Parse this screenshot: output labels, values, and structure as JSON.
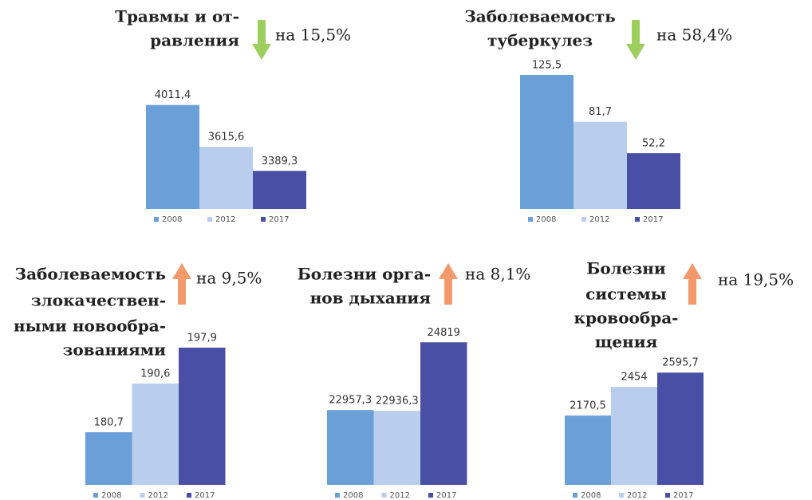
{
  "chart_data": [
    {
      "type": "bar",
      "title_lines": [
        "Травмы и от-",
        "равления"
      ],
      "annotation": "на 15,5%",
      "direction": "down",
      "arrow_color": "#9dce5e",
      "categories": [
        "2008",
        "2012",
        "2017"
      ],
      "values": [
        4011.4,
        3615.6,
        3389.3
      ],
      "value_labels": [
        "4011,4",
        "3615,6",
        "3389,3"
      ],
      "colors": [
        "#6a9fd8",
        "#b9cdec",
        "#4a4fa6"
      ],
      "ylim": [
        3030,
        4250
      ]
    },
    {
      "type": "bar",
      "title_lines": [
        "Заболеваемость",
        "туберкулез"
      ],
      "annotation": "на 58,4%",
      "direction": "down",
      "arrow_color": "#9dce5e",
      "categories": [
        "2008",
        "2012",
        "2017"
      ],
      "values": [
        125.5,
        81.7,
        52.2
      ],
      "value_labels": [
        "125,5",
        "81,7",
        "52,2"
      ],
      "colors": [
        "#6a9fd8",
        "#b9cdec",
        "#4a4fa6"
      ],
      "ylim": [
        0,
        130
      ]
    },
    {
      "type": "bar",
      "title_lines": [
        "Заболеваемость",
        "злокачествен-",
        "ными новообра-",
        "зованиями"
      ],
      "annotation": "на 9,5%",
      "direction": "up",
      "arrow_color": "#f29a6c",
      "categories": [
        "2008",
        "2012",
        "2017"
      ],
      "values": [
        180.7,
        190.6,
        197.9
      ],
      "value_labels": [
        "180,7",
        "190,6",
        "197,9"
      ],
      "colors": [
        "#6a9fd8",
        "#b9cdec",
        "#4a4fa6"
      ],
      "ylim": [
        170,
        200
      ]
    },
    {
      "type": "bar",
      "title_lines": [
        "Болезни орга-",
        "нов дыхания"
      ],
      "annotation": "на 8,1%",
      "direction": "up",
      "arrow_color": "#f29a6c",
      "categories": [
        "2008",
        "2012",
        "2017"
      ],
      "values": [
        22957.3,
        22936.3,
        24819
      ],
      "value_labels": [
        "22957,3",
        "22936,3",
        "24819"
      ],
      "colors": [
        "#6a9fd8",
        "#b9cdec",
        "#4a4fa6"
      ],
      "ylim": [
        20900,
        25000
      ]
    },
    {
      "type": "bar",
      "title_lines": [
        "Болезни",
        "системы",
        "кровообра-",
        "щения"
      ],
      "annotation": "на 19,5%",
      "direction": "up",
      "arrow_color": "#f29a6c",
      "categories": [
        "2008",
        "2012",
        "2017"
      ],
      "values": [
        2170.5,
        2454,
        2595.7
      ],
      "value_labels": [
        "2170,5",
        "2454",
        "2595,7"
      ],
      "colors": [
        "#6a9fd8",
        "#b9cdec",
        "#4a4fa6"
      ],
      "ylim": [
        1485,
        2700
      ]
    }
  ]
}
